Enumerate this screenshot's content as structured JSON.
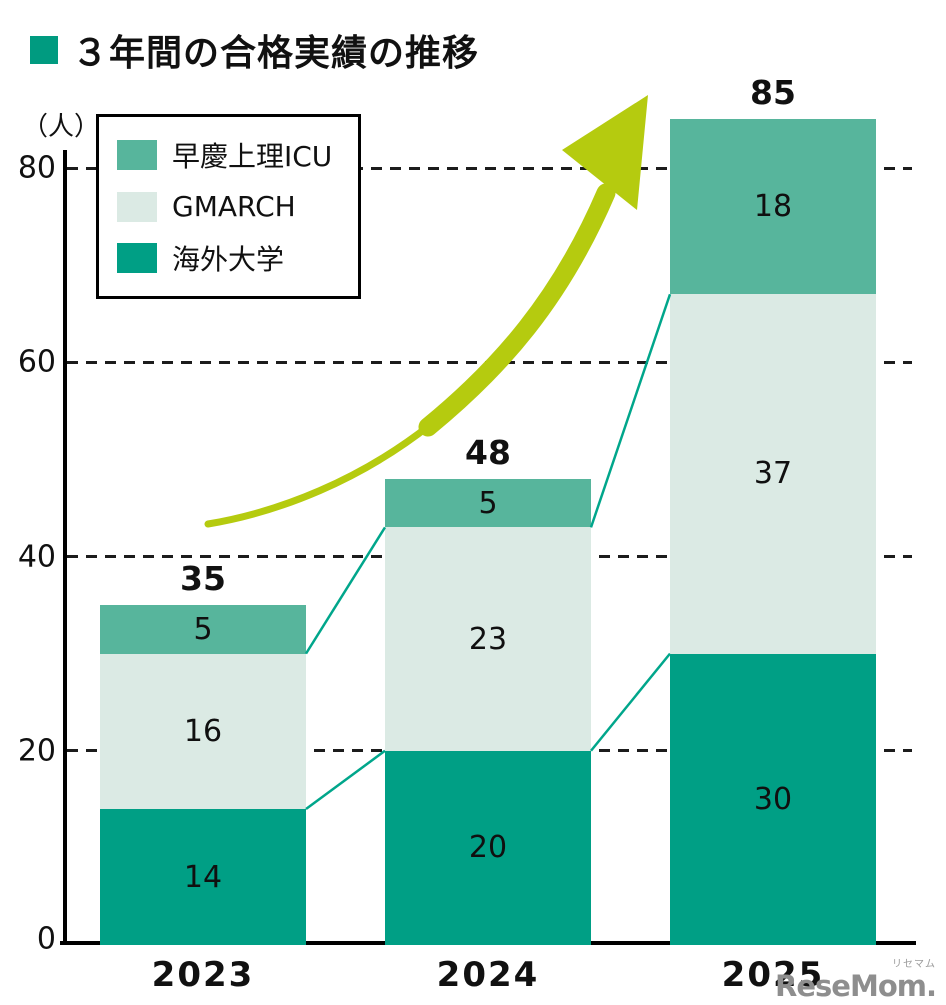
{
  "title": {
    "text": "３年間の合格実績の推移",
    "bullet_color": "#009b80"
  },
  "legend": [
    {
      "label": "早慶上理ICU",
      "color": "#57b59c"
    },
    {
      "label": "GMARCH",
      "color": "#dbeae4"
    },
    {
      "label": "海外大学",
      "color": "#009f85"
    }
  ],
  "chart_data": {
    "type": "bar",
    "stacked": true,
    "title": "３年間の合格実績の推移",
    "categories": [
      "2023",
      "2024",
      "2025"
    ],
    "series": [
      {
        "name": "海外大学",
        "color": "#009f85",
        "values": [
          14,
          20,
          30
        ]
      },
      {
        "name": "GMARCH",
        "color": "#dbeae4",
        "values": [
          16,
          23,
          37
        ]
      },
      {
        "name": "早慶上理ICU",
        "color": "#57b59c",
        "values": [
          5,
          5,
          18
        ]
      }
    ],
    "totals": [
      35,
      48,
      85
    ],
    "yticks": [
      0,
      20,
      40,
      60,
      80
    ],
    "ylim": [
      0,
      80
    ],
    "ylabel": "（人）",
    "xlabel": "",
    "grid": "dashed-horizontal",
    "legend_position": "top-left"
  },
  "connector_color": "#00a68b",
  "arrow_color": "#b5cb0f",
  "watermark": {
    "kana": "リセマム",
    "text": "ReseMom."
  }
}
